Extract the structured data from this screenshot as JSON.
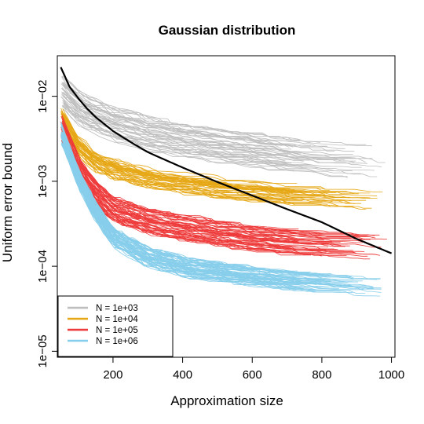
{
  "chart_data": {
    "type": "line",
    "title": "Gaussian distribution",
    "xlabel": "Approximation size",
    "ylabel": "Uniform error bound",
    "y_scale": "log10",
    "xlim": [
      40,
      1010
    ],
    "ylim": [
      8.5e-06,
      0.03
    ],
    "x_ticks": [
      200,
      400,
      600,
      800,
      1000
    ],
    "x_tick_labels": [
      "200",
      "400",
      "600",
      "800",
      "1000"
    ],
    "y_ticks": [
      0.01,
      0.001,
      0.0001,
      1e-05
    ],
    "y_tick_labels": [
      "1e−02",
      "1e−03",
      "1e−04",
      "1e−05"
    ],
    "legend_position": "bottom-left",
    "colors": {
      "N = 1e+03": "#bebebe",
      "N = 1e+04": "#e6a817",
      "N = 1e+05": "#ee3b3b",
      "N = 1e+06": "#87ceeb",
      "bound": "#000000"
    },
    "series": [
      {
        "name": "N = 1e+03",
        "count": 45,
        "x": [
          50,
          100,
          150,
          200,
          300,
          400,
          500,
          600,
          700,
          800,
          900,
          1000
        ],
        "values": [
          0.012,
          0.0075,
          0.0058,
          0.0048,
          0.0037,
          0.0031,
          0.0027,
          0.0024,
          0.0021,
          0.0019,
          0.0018,
          0.0016
        ],
        "spread_log10": 0.2
      },
      {
        "name": "N = 1e+04",
        "count": 45,
        "x": [
          50,
          100,
          150,
          200,
          300,
          400,
          500,
          600,
          700,
          800,
          900,
          1000
        ],
        "values": [
          0.006,
          0.0026,
          0.0017,
          0.0014,
          0.0011,
          0.00095,
          0.00085,
          0.00078,
          0.00072,
          0.00068,
          0.00064,
          0.00061
        ],
        "spread_log10": 0.12
      },
      {
        "name": "N = 1e+05",
        "count": 55,
        "x": [
          50,
          100,
          150,
          200,
          300,
          400,
          500,
          600,
          700,
          800,
          900,
          1000
        ],
        "values": [
          0.0045,
          0.0014,
          0.00075,
          0.00048,
          0.00035,
          0.00029,
          0.00025,
          0.00022,
          0.0002,
          0.00019,
          0.00018,
          0.00017
        ],
        "spread_log10": 0.15
      },
      {
        "name": "N = 1e+06",
        "count": 65,
        "x": [
          50,
          100,
          150,
          200,
          300,
          400,
          500,
          600,
          700,
          800,
          900,
          1000
        ],
        "values": [
          0.0038,
          0.0011,
          0.00045,
          0.00022,
          0.00013,
          0.0001,
          8.7e-05,
          7.8e-05,
          7.1e-05,
          6.6e-05,
          6.2e-05,
          5.9e-05
        ],
        "spread_log10": 0.11
      },
      {
        "name": "bound",
        "x": [
          50,
          75,
          100,
          125,
          150,
          200,
          250,
          300,
          400,
          500,
          600,
          700,
          800,
          900,
          1000
        ],
        "values": [
          0.022,
          0.013,
          0.0095,
          0.0072,
          0.0057,
          0.0039,
          0.0029,
          0.0022,
          0.00145,
          0.00098,
          0.00068,
          0.00047,
          0.00033,
          0.00021,
          0.000142
        ]
      }
    ]
  }
}
